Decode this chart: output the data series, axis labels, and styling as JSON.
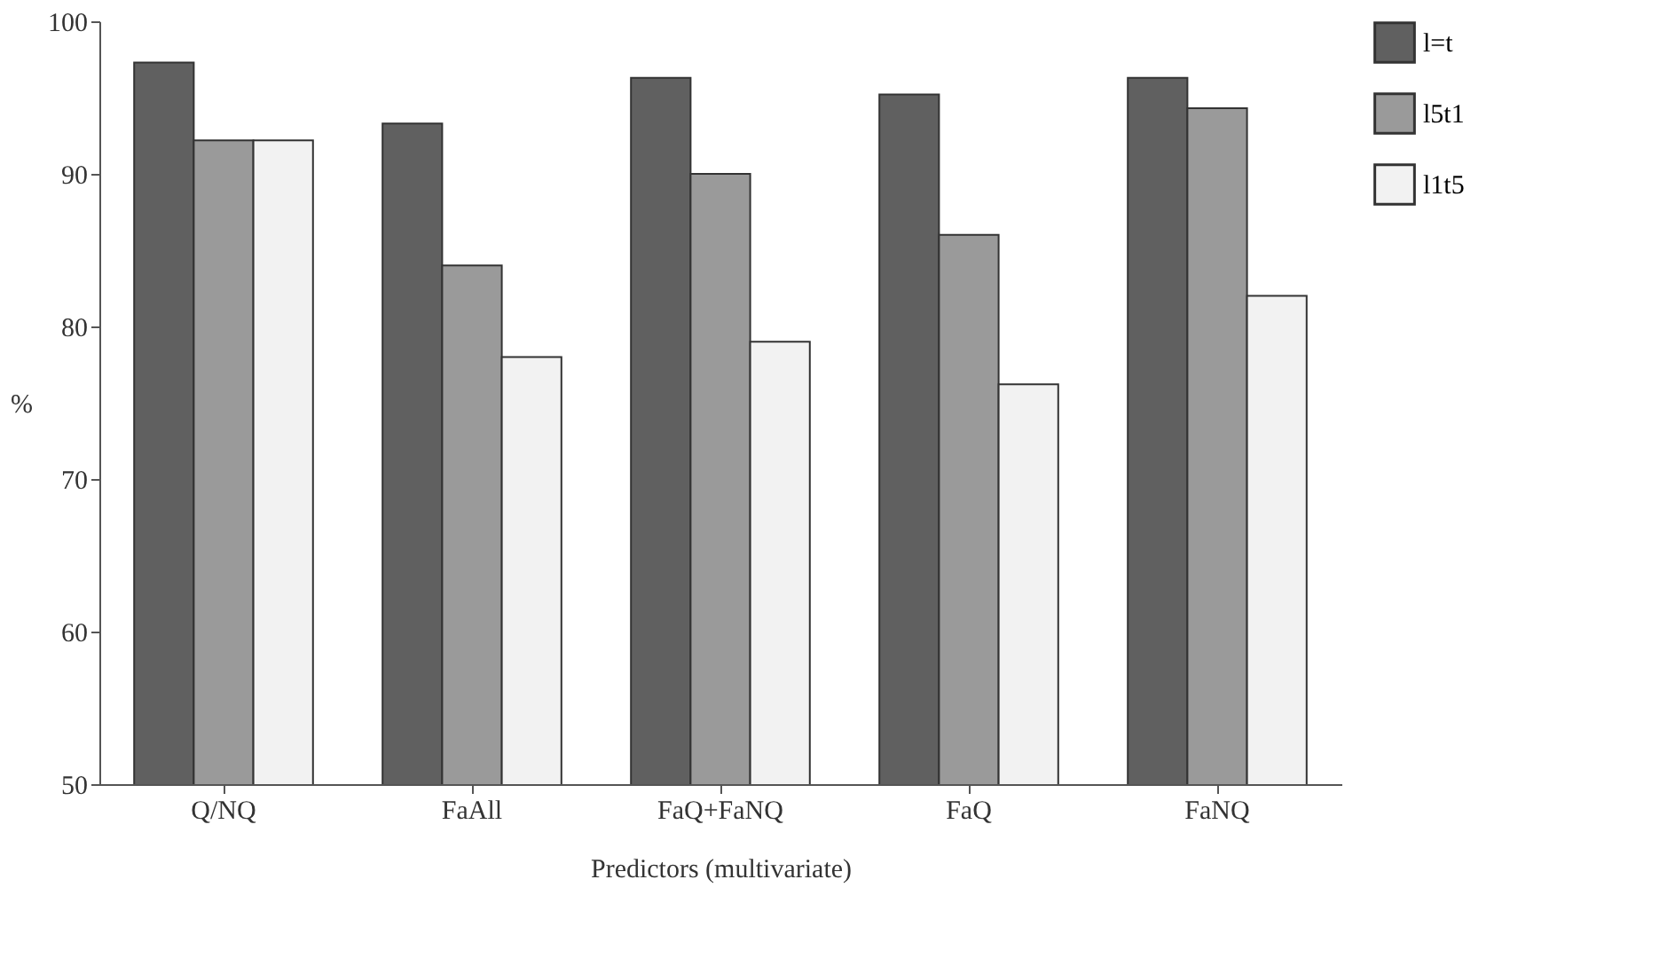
{
  "chart_data": {
    "type": "bar",
    "xlabel": "Predictors (multivariate)",
    "ylabel": "%",
    "categories": [
      "Q/NQ",
      "FaAll",
      "FaQ+FaNQ",
      "FaQ",
      "FaNQ"
    ],
    "series": [
      {
        "name": "l=t",
        "color": "#606060",
        "values": [
          97.3,
          93.3,
          96.3,
          95.2,
          96.3
        ]
      },
      {
        "name": "l5t1",
        "color": "#9a9a9a",
        "values": [
          92.2,
          84,
          90,
          86,
          94.3
        ]
      },
      {
        "name": "l1t5",
        "color": "#f2f2f2",
        "values": [
          92.2,
          78,
          79,
          76.2,
          82
        ]
      }
    ],
    "ylim": [
      50,
      100
    ],
    "yticks": [
      50,
      60,
      70,
      80,
      90,
      100
    ],
    "legend": "right"
  }
}
